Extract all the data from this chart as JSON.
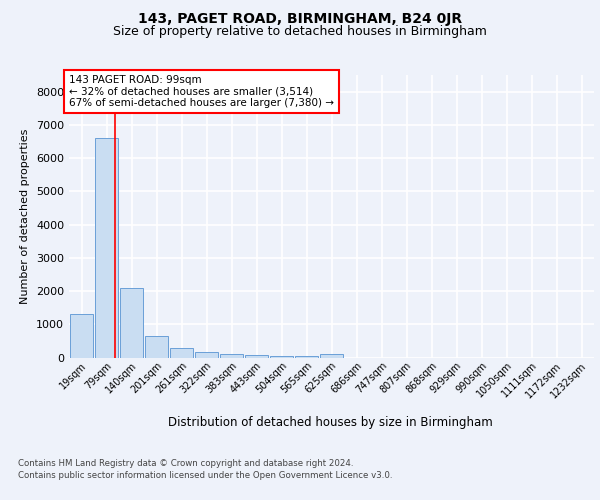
{
  "title": "143, PAGET ROAD, BIRMINGHAM, B24 0JR",
  "subtitle": "Size of property relative to detached houses in Birmingham",
  "xlabel": "Distribution of detached houses by size in Birmingham",
  "ylabel": "Number of detached properties",
  "footer_line1": "Contains HM Land Registry data © Crown copyright and database right 2024.",
  "footer_line2": "Contains public sector information licensed under the Open Government Licence v3.0.",
  "annotation_line1": "143 PAGET ROAD: 99sqm",
  "annotation_line2": "← 32% of detached houses are smaller (3,514)",
  "annotation_line3": "67% of semi-detached houses are larger (7,380) →",
  "bar_labels": [
    "19sqm",
    "79sqm",
    "140sqm",
    "201sqm",
    "261sqm",
    "322sqm",
    "383sqm",
    "443sqm",
    "504sqm",
    "565sqm",
    "625sqm",
    "686sqm",
    "747sqm",
    "807sqm",
    "868sqm",
    "929sqm",
    "990sqm",
    "1050sqm",
    "1111sqm",
    "1172sqm",
    "1232sqm"
  ],
  "bar_values": [
    1300,
    6600,
    2100,
    650,
    300,
    155,
    105,
    80,
    60,
    50,
    100,
    0,
    0,
    0,
    0,
    0,
    0,
    0,
    0,
    0,
    0
  ],
  "bar_color": "#c9ddf2",
  "bar_edge_color": "#6a9fd8",
  "red_line_x": 1.33,
  "ylim": [
    0,
    8500
  ],
  "yticks": [
    0,
    1000,
    2000,
    3000,
    4000,
    5000,
    6000,
    7000,
    8000
  ],
  "background_color": "#eef2fa",
  "grid_color": "#ffffff",
  "title_fontsize": 10,
  "subtitle_fontsize": 9
}
